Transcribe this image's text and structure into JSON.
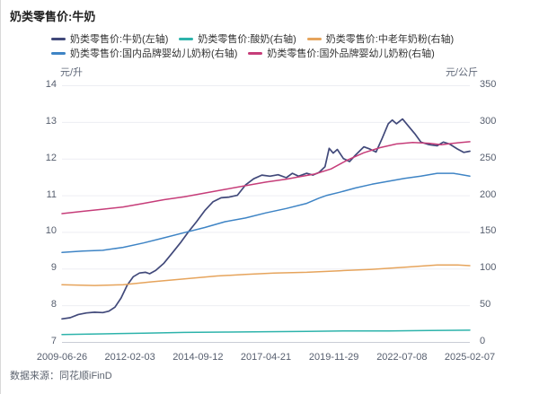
{
  "header": {
    "title": "奶类零售价:牛奶"
  },
  "footer": {
    "source": "数据来源：同花顺iFinD"
  },
  "legend": {
    "items": [
      {
        "label": "奶类零售价:牛奶(左轴)",
        "color": "#41497a",
        "row": 1
      },
      {
        "label": "奶类零售价:酸奶(右轴)",
        "color": "#2db3ab",
        "row": 1
      },
      {
        "label": "奶类零售价:中老年奶粉(右轴)",
        "color": "#e6a45c",
        "row": 1
      },
      {
        "label": "奶类零售价:国内品牌婴幼儿奶粉(右轴)",
        "color": "#3e84c5",
        "row": 2
      },
      {
        "label": "奶类零售价:国外品牌婴幼儿奶粉(右轴)",
        "color": "#c63d79",
        "row": 2
      }
    ]
  },
  "chart_data": {
    "type": "line",
    "title": "奶类零售价:牛奶",
    "x_axis": {
      "type": "time",
      "tick_labels": [
        "2009-06-26",
        "2012-02-03",
        "2014-09-12",
        "2017-04-21",
        "2019-11-29",
        "2022-07-08",
        "2025-02-07"
      ]
    },
    "left_axis": {
      "unit": "元/升",
      "min": 7,
      "max": 14,
      "ticks": [
        14,
        13,
        12,
        11,
        10,
        9,
        8,
        7
      ]
    },
    "right_axis": {
      "unit": "元/公斤",
      "min": 0,
      "max": 350,
      "ticks": [
        350,
        300,
        250,
        200,
        150,
        100,
        50,
        0
      ]
    },
    "grid": true,
    "colors": {
      "grid": "#edeef3",
      "axis_line": "#c9cdd6"
    },
    "series": [
      {
        "name": "奶类零售价:牛奶(左轴)",
        "axis": "left",
        "color": "#41497a",
        "width": 1.7,
        "points": [
          [
            0.0,
            7.63
          ],
          [
            0.02,
            7.66
          ],
          [
            0.04,
            7.75
          ],
          [
            0.06,
            7.79
          ],
          [
            0.08,
            7.81
          ],
          [
            0.1,
            7.8
          ],
          [
            0.115,
            7.84
          ],
          [
            0.13,
            7.95
          ],
          [
            0.145,
            8.2
          ],
          [
            0.16,
            8.55
          ],
          [
            0.175,
            8.78
          ],
          [
            0.19,
            8.88
          ],
          [
            0.205,
            8.9
          ],
          [
            0.215,
            8.86
          ],
          [
            0.23,
            8.95
          ],
          [
            0.25,
            9.15
          ],
          [
            0.27,
            9.42
          ],
          [
            0.29,
            9.7
          ],
          [
            0.31,
            10.0
          ],
          [
            0.33,
            10.28
          ],
          [
            0.35,
            10.58
          ],
          [
            0.37,
            10.82
          ],
          [
            0.39,
            10.93
          ],
          [
            0.41,
            10.95
          ],
          [
            0.43,
            11.0
          ],
          [
            0.45,
            11.28
          ],
          [
            0.47,
            11.45
          ],
          [
            0.49,
            11.55
          ],
          [
            0.51,
            11.52
          ],
          [
            0.53,
            11.56
          ],
          [
            0.55,
            11.48
          ],
          [
            0.565,
            11.6
          ],
          [
            0.58,
            11.52
          ],
          [
            0.6,
            11.6
          ],
          [
            0.615,
            11.55
          ],
          [
            0.63,
            11.62
          ],
          [
            0.645,
            11.78
          ],
          [
            0.655,
            12.28
          ],
          [
            0.665,
            12.15
          ],
          [
            0.675,
            12.25
          ],
          [
            0.69,
            12.0
          ],
          [
            0.705,
            11.92
          ],
          [
            0.72,
            12.1
          ],
          [
            0.74,
            12.32
          ],
          [
            0.755,
            12.26
          ],
          [
            0.77,
            12.18
          ],
          [
            0.785,
            12.55
          ],
          [
            0.8,
            12.95
          ],
          [
            0.81,
            13.05
          ],
          [
            0.82,
            12.95
          ],
          [
            0.835,
            13.08
          ],
          [
            0.85,
            12.88
          ],
          [
            0.865,
            12.68
          ],
          [
            0.88,
            12.45
          ],
          [
            0.9,
            12.38
          ],
          [
            0.92,
            12.35
          ],
          [
            0.935,
            12.45
          ],
          [
            0.95,
            12.4
          ],
          [
            0.97,
            12.26
          ],
          [
            0.985,
            12.17
          ],
          [
            1.0,
            12.2
          ]
        ]
      },
      {
        "name": "奶类零售价:酸奶(右轴)",
        "axis": "right",
        "color": "#2db3ab",
        "width": 1.5,
        "points": [
          [
            0,
            10
          ],
          [
            0.1,
            11
          ],
          [
            0.2,
            12
          ],
          [
            0.3,
            13
          ],
          [
            0.4,
            13.5
          ],
          [
            0.5,
            14
          ],
          [
            0.6,
            14.5
          ],
          [
            0.7,
            15
          ],
          [
            0.8,
            15
          ],
          [
            0.9,
            15.5
          ],
          [
            1.0,
            16
          ]
        ]
      },
      {
        "name": "奶类零售价:中老年奶粉(右轴)",
        "axis": "right",
        "color": "#e6a45c",
        "width": 1.5,
        "points": [
          [
            0,
            78
          ],
          [
            0.08,
            77
          ],
          [
            0.15,
            78
          ],
          [
            0.22,
            82
          ],
          [
            0.3,
            86
          ],
          [
            0.38,
            90
          ],
          [
            0.45,
            92
          ],
          [
            0.52,
            94
          ],
          [
            0.6,
            95
          ],
          [
            0.68,
            97
          ],
          [
            0.76,
            99
          ],
          [
            0.84,
            102
          ],
          [
            0.92,
            105
          ],
          [
            0.97,
            105
          ],
          [
            1.0,
            104
          ]
        ]
      },
      {
        "name": "奶类零售价:国内品牌婴幼儿奶粉(右轴)",
        "axis": "right",
        "color": "#3e84c5",
        "width": 1.5,
        "points": [
          [
            0,
            122
          ],
          [
            0.05,
            124
          ],
          [
            0.1,
            125
          ],
          [
            0.15,
            129
          ],
          [
            0.2,
            135
          ],
          [
            0.25,
            142
          ],
          [
            0.3,
            149
          ],
          [
            0.35,
            156
          ],
          [
            0.4,
            164
          ],
          [
            0.45,
            169
          ],
          [
            0.5,
            176
          ],
          [
            0.55,
            182
          ],
          [
            0.6,
            189
          ],
          [
            0.63,
            196
          ],
          [
            0.65,
            200
          ],
          [
            0.68,
            204
          ],
          [
            0.72,
            210
          ],
          [
            0.76,
            215
          ],
          [
            0.8,
            219
          ],
          [
            0.84,
            223
          ],
          [
            0.88,
            226
          ],
          [
            0.92,
            230
          ],
          [
            0.96,
            230
          ],
          [
            1.0,
            226
          ]
        ]
      },
      {
        "name": "奶类零售价:国外品牌婴幼儿奶粉(右轴)",
        "axis": "right",
        "color": "#c63d79",
        "width": 1.5,
        "points": [
          [
            0,
            175
          ],
          [
            0.05,
            178
          ],
          [
            0.1,
            181
          ],
          [
            0.15,
            184
          ],
          [
            0.2,
            189
          ],
          [
            0.25,
            194
          ],
          [
            0.3,
            198
          ],
          [
            0.35,
            203
          ],
          [
            0.4,
            208
          ],
          [
            0.45,
            213
          ],
          [
            0.5,
            218
          ],
          [
            0.55,
            222
          ],
          [
            0.58,
            225
          ],
          [
            0.62,
            229
          ],
          [
            0.66,
            236
          ],
          [
            0.7,
            248
          ],
          [
            0.74,
            258
          ],
          [
            0.78,
            265
          ],
          [
            0.82,
            270
          ],
          [
            0.86,
            272
          ],
          [
            0.9,
            271
          ],
          [
            0.93,
            269
          ],
          [
            0.96,
            271
          ],
          [
            1.0,
            273
          ]
        ]
      }
    ]
  }
}
